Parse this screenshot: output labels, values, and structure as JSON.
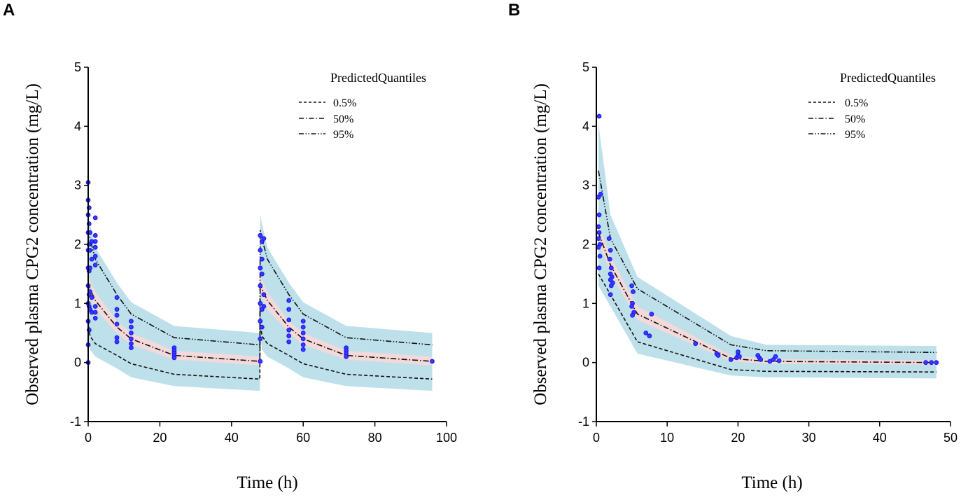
{
  "chart_data": [
    {
      "type": "line",
      "panel_label": "A",
      "title": "",
      "xlabel": "Time (h)",
      "ylabel": "Observed plasma CPG2 concentration (mg/L)",
      "xlim": [
        0,
        100
      ],
      "ylim": [
        -1,
        5
      ],
      "xticks": [
        0,
        20,
        40,
        60,
        80,
        100
      ],
      "yticks": [
        -1,
        0,
        1,
        2,
        3,
        4,
        5
      ],
      "legend": {
        "title": "PredictedQuantiles",
        "position": "top-right",
        "entries": [
          {
            "label": "0.5%",
            "style": "dashed"
          },
          {
            "label": "50%",
            "style": "dash-dot"
          },
          {
            "label": "95%",
            "style": "dash-dot-dot"
          }
        ]
      },
      "colors": {
        "outer_band": "#add8e6",
        "inner_band": "#f6d8d8",
        "line": "#111111",
        "points": "#1a1aee"
      },
      "series": [
        {
          "name": "0.5%",
          "style": "dashed",
          "x": [
            0,
            0.5,
            2,
            8,
            12,
            24,
            47.9,
            48,
            48.5,
            50,
            56,
            60,
            72,
            96
          ],
          "values": [
            0.7,
            0.45,
            0.32,
            0.12,
            -0.02,
            -0.2,
            -0.28,
            0.7,
            0.45,
            0.32,
            0.12,
            -0.02,
            -0.2,
            -0.28
          ]
        },
        {
          "name": "50%",
          "style": "dash-dot",
          "x": [
            0,
            0.5,
            2,
            8,
            12,
            24,
            47.9,
            48,
            48.5,
            50,
            56,
            60,
            72,
            96
          ],
          "values": [
            1.35,
            1.25,
            1.05,
            0.6,
            0.4,
            0.12,
            0.02,
            1.35,
            1.25,
            1.05,
            0.6,
            0.4,
            0.12,
            0.02
          ]
        },
        {
          "name": "95%",
          "style": "dash-dot-dot",
          "x": [
            0,
            0.5,
            2,
            8,
            12,
            24,
            47.9,
            48,
            48.5,
            50,
            56,
            60,
            72,
            96
          ],
          "values": [
            2.25,
            2.1,
            1.75,
            1.15,
            0.82,
            0.42,
            0.3,
            2.25,
            2.1,
            1.75,
            1.15,
            0.82,
            0.42,
            0.3
          ]
        }
      ],
      "bands": [
        {
          "name": "outer",
          "x": [
            0,
            0.5,
            2,
            8,
            12,
            24,
            47.9,
            48,
            48.5,
            50,
            56,
            60,
            72,
            96
          ],
          "lower": [
            0.5,
            0.22,
            0.1,
            -0.1,
            -0.25,
            -0.4,
            -0.48,
            0.5,
            0.22,
            0.1,
            -0.1,
            -0.25,
            -0.4,
            -0.48
          ],
          "upper": [
            2.5,
            2.35,
            1.95,
            1.35,
            1.02,
            0.62,
            0.5,
            2.5,
            2.35,
            1.95,
            1.35,
            1.02,
            0.62,
            0.5
          ]
        },
        {
          "name": "inner",
          "x": [
            0,
            0.5,
            2,
            8,
            12,
            24,
            47.9,
            48,
            48.5,
            50,
            56,
            60,
            72,
            96
          ],
          "lower": [
            1.18,
            1.1,
            0.9,
            0.5,
            0.3,
            0.05,
            -0.05,
            1.18,
            1.1,
            0.9,
            0.5,
            0.3,
            0.05,
            -0.05
          ],
          "upper": [
            1.5,
            1.4,
            1.2,
            0.7,
            0.5,
            0.2,
            0.1,
            1.5,
            1.4,
            1.2,
            0.7,
            0.5,
            0.2,
            0.1
          ]
        }
      ],
      "points": [
        [
          0,
          3.05
        ],
        [
          0,
          2.75
        ],
        [
          0,
          2.5
        ],
        [
          0,
          2.2
        ],
        [
          0,
          1.9
        ],
        [
          0,
          1.6
        ],
        [
          0,
          1.3
        ],
        [
          0,
          1.0
        ],
        [
          0,
          0.7
        ],
        [
          0,
          0.3
        ],
        [
          0,
          0.0
        ],
        [
          0.25,
          2.62
        ],
        [
          0.25,
          2.35
        ],
        [
          0.25,
          2.0
        ],
        [
          0.25,
          1.55
        ],
        [
          0.25,
          1.15
        ],
        [
          0.25,
          0.95
        ],
        [
          0.25,
          0.55
        ],
        [
          0.5,
          2.2
        ],
        [
          0.5,
          1.9
        ],
        [
          0.5,
          1.6
        ],
        [
          0.5,
          1.2
        ],
        [
          0.5,
          0.9
        ],
        [
          1,
          2.05
        ],
        [
          1,
          1.75
        ],
        [
          1,
          1.1
        ],
        [
          1,
          0.85
        ],
        [
          2,
          2.45
        ],
        [
          2,
          2.15
        ],
        [
          2,
          2.05
        ],
        [
          2,
          1.95
        ],
        [
          2,
          1.8
        ],
        [
          2,
          1.65
        ],
        [
          2,
          0.95
        ],
        [
          2,
          0.85
        ],
        [
          2,
          0.75
        ],
        [
          8,
          1.1
        ],
        [
          8,
          0.9
        ],
        [
          8,
          0.8
        ],
        [
          8,
          0.65
        ],
        [
          8,
          0.42
        ],
        [
          8,
          0.35
        ],
        [
          12,
          0.7
        ],
        [
          12,
          0.6
        ],
        [
          12,
          0.5
        ],
        [
          12,
          0.4
        ],
        [
          12,
          0.32
        ],
        [
          12,
          0.25
        ],
        [
          24,
          0.25
        ],
        [
          24,
          0.2
        ],
        [
          24,
          0.16
        ],
        [
          24,
          0.12
        ],
        [
          24,
          0.08
        ],
        [
          48,
          2.15
        ],
        [
          48,
          1.9
        ],
        [
          48,
          1.6
        ],
        [
          48,
          1.3
        ],
        [
          48,
          1.0
        ],
        [
          48,
          0.7
        ],
        [
          48,
          0.4
        ],
        [
          48,
          0.02
        ],
        [
          48.5,
          2.05
        ],
        [
          48.5,
          1.75
        ],
        [
          48.5,
          1.5
        ],
        [
          48.5,
          0.9
        ],
        [
          48.5,
          0.6
        ],
        [
          49,
          2.1
        ],
        [
          49,
          1.15
        ],
        [
          49,
          0.95
        ],
        [
          56,
          1.05
        ],
        [
          56,
          0.9
        ],
        [
          56,
          0.72
        ],
        [
          56,
          0.55
        ],
        [
          56,
          0.45
        ],
        [
          56,
          0.35
        ],
        [
          60,
          0.7
        ],
        [
          60,
          0.6
        ],
        [
          60,
          0.5
        ],
        [
          60,
          0.4
        ],
        [
          60,
          0.3
        ],
        [
          60,
          0.22
        ],
        [
          72,
          0.25
        ],
        [
          72,
          0.2
        ],
        [
          72,
          0.15
        ],
        [
          72,
          0.1
        ],
        [
          96,
          0.02
        ]
      ]
    },
    {
      "type": "line",
      "panel_label": "B",
      "title": "",
      "xlabel": "Time (h)",
      "ylabel": "Observed plasma CPG2 concentration (mg/L)",
      "xlim": [
        0,
        50
      ],
      "ylim": [
        -1,
        5
      ],
      "xticks": [
        0,
        10,
        20,
        30,
        40,
        50
      ],
      "yticks": [
        -1,
        0,
        1,
        2,
        3,
        4,
        5
      ],
      "legend": {
        "title": "PredictedQuantiles",
        "position": "top-right",
        "entries": [
          {
            "label": "0.5%",
            "style": "dashed"
          },
          {
            "label": "50%",
            "style": "dash-dot"
          },
          {
            "label": "95%",
            "style": "dash-dot-dot"
          }
        ]
      },
      "colors": {
        "outer_band": "#add8e6",
        "inner_band": "#f6d8d8",
        "line": "#111111",
        "points": "#1a1aee"
      },
      "series": [
        {
          "name": "0.5%",
          "style": "dashed",
          "x": [
            0.3,
            2,
            5.8,
            19,
            24,
            48
          ],
          "values": [
            1.5,
            1.15,
            0.35,
            -0.12,
            -0.15,
            -0.16
          ]
        },
        {
          "name": "50%",
          "style": "dash-dot",
          "x": [
            0.3,
            2,
            5.8,
            19,
            24,
            48
          ],
          "values": [
            2.2,
            1.65,
            0.82,
            0.07,
            0.02,
            0.0
          ]
        },
        {
          "name": "95%",
          "style": "dash-dot-dot",
          "x": [
            0.3,
            2,
            5.8,
            19,
            24,
            48
          ],
          "values": [
            3.25,
            2.1,
            1.25,
            0.3,
            0.2,
            0.17
          ]
        }
      ],
      "bands": [
        {
          "name": "outer",
          "x": [
            0.3,
            2,
            5.8,
            19,
            24,
            48
          ],
          "lower": [
            1.3,
            0.95,
            0.15,
            -0.22,
            -0.25,
            -0.27
          ],
          "upper": [
            4.05,
            2.5,
            1.45,
            0.45,
            0.3,
            0.28
          ]
        },
        {
          "name": "inner",
          "x": [
            0.3,
            2,
            5.8,
            19,
            24,
            48
          ],
          "lower": [
            2.05,
            1.52,
            0.72,
            0.02,
            -0.02,
            -0.04
          ],
          "upper": [
            2.35,
            1.8,
            0.95,
            0.12,
            0.06,
            0.04
          ]
        }
      ],
      "points": [
        [
          0.4,
          4.17
        ],
        [
          0.3,
          2.8
        ],
        [
          0.4,
          2.5
        ],
        [
          0.3,
          2.3
        ],
        [
          0.4,
          2.2
        ],
        [
          0.3,
          2.1
        ],
        [
          0.5,
          2.0
        ],
        [
          0.3,
          1.95
        ],
        [
          0.5,
          1.8
        ],
        [
          0.4,
          1.6
        ],
        [
          0.6,
          2.85
        ],
        [
          1.8,
          2.1
        ],
        [
          2.0,
          1.9
        ],
        [
          1.9,
          1.75
        ],
        [
          2.1,
          1.6
        ],
        [
          2.0,
          1.5
        ],
        [
          2.2,
          1.45
        ],
        [
          2.0,
          1.4
        ],
        [
          2.3,
          1.35
        ],
        [
          2.1,
          1.3
        ],
        [
          2.0,
          1.15
        ],
        [
          5.0,
          1.3
        ],
        [
          5.2,
          1.2
        ],
        [
          5.1,
          1.0
        ],
        [
          5.0,
          0.95
        ],
        [
          5.3,
          0.85
        ],
        [
          5.1,
          0.8
        ],
        [
          7.0,
          0.5
        ],
        [
          7.5,
          0.45
        ],
        [
          7.8,
          0.82
        ],
        [
          14.0,
          0.32
        ],
        [
          17.0,
          0.15
        ],
        [
          17.2,
          0.12
        ],
        [
          19.0,
          0.05
        ],
        [
          19.8,
          0.08
        ],
        [
          20.0,
          0.18
        ],
        [
          20.0,
          0.12
        ],
        [
          20.2,
          0.1
        ],
        [
          22.8,
          0.12
        ],
        [
          23.0,
          0.08
        ],
        [
          23.2,
          0.05
        ],
        [
          24.5,
          0.02
        ],
        [
          25.0,
          0.05
        ],
        [
          25.3,
          0.1
        ],
        [
          25.8,
          0.03
        ],
        [
          46.5,
          0.0
        ],
        [
          47.3,
          0.0
        ],
        [
          48.0,
          0.0
        ]
      ]
    }
  ]
}
